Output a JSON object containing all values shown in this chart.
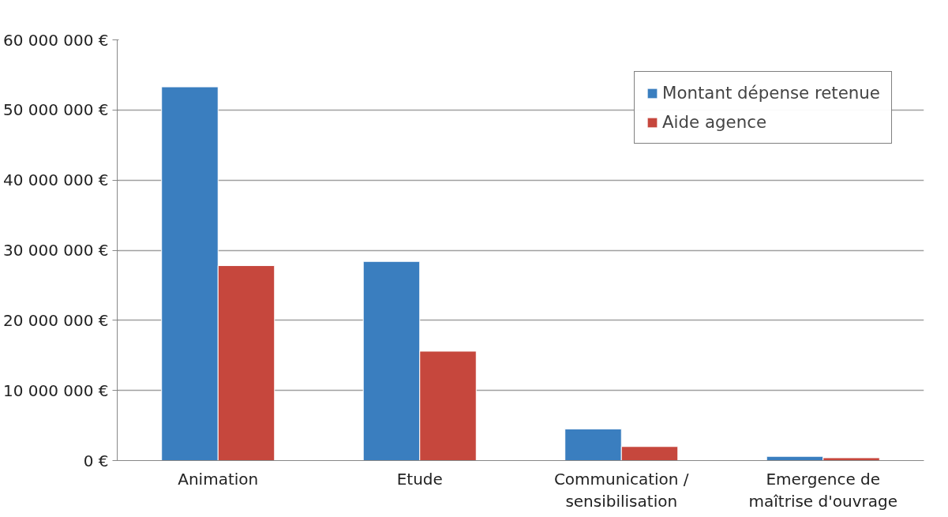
{
  "chart_data": {
    "type": "bar",
    "categories": [
      "Animation",
      "Etude",
      "Communication /\nsensibilisation",
      "Emergence de\nmaîtrise d'ouvrage"
    ],
    "series": [
      {
        "name": "Montant dépense retenue",
        "color": "#3a7ebf",
        "values": [
          53300000,
          28400000,
          4500000,
          600000
        ]
      },
      {
        "name": "Aide agence",
        "color": "#c6473d",
        "values": [
          27800000,
          15600000,
          2000000,
          400000
        ]
      }
    ],
    "ylim": [
      0,
      60000000
    ],
    "yticks": [
      {
        "value": 0,
        "label": "0 €"
      },
      {
        "value": 10000000,
        "label": "10 000 000 €"
      },
      {
        "value": 20000000,
        "label": "20 000 000 €"
      },
      {
        "value": 30000000,
        "label": "30 000 000 €"
      },
      {
        "value": 40000000,
        "label": "40 000 000 €"
      },
      {
        "value": 50000000,
        "label": "50 000 000 €"
      },
      {
        "value": 60000000,
        "label": "60 000 000 €"
      }
    ],
    "grid": "y",
    "legend": "top right"
  }
}
